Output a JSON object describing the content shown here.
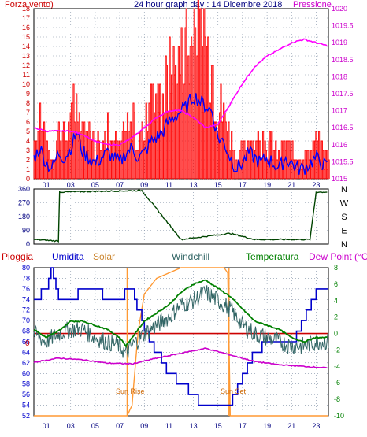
{
  "header": {
    "left_label": "Forza vento)",
    "title": "24 hour graph day : 14 Dicembre 2018",
    "right_label": "Pressione"
  },
  "colors": {
    "wind": "#ff0000",
    "windavg": "#0000ff",
    "pressure": "#ff00ff",
    "direction": "#004400",
    "pioggia": "#cc0000",
    "umidita": "#0000cc",
    "solar": "#ff9933",
    "windchill": "#336666",
    "temperatura": "#008000",
    "dewpoint": "#cc00cc",
    "grid": "#7a8aa0",
    "frame": "#000000"
  },
  "chart_data": [
    {
      "type": "line",
      "y_left_ticks": [
        0,
        1,
        2,
        3,
        4,
        5,
        6,
        7,
        8,
        9,
        10,
        11,
        12,
        13,
        14,
        15,
        16,
        17,
        18
      ],
      "y_right_ticks": [
        "1015",
        "1015.5",
        "1016",
        "1016.5",
        "1017",
        "1017.5",
        "1018",
        "1018.5",
        "1019",
        "1019.5",
        "1020"
      ],
      "x_ticks": [
        "01",
        "03",
        "05",
        "07",
        "09",
        "11",
        "13",
        "15",
        "17",
        "19",
        "21",
        "23"
      ],
      "ylim_left": [
        0,
        18
      ],
      "ylim_right": [
        1015,
        1020
      ],
      "series": [
        {
          "name": "Forza vento)",
          "x": [
            0,
            0.5,
            1,
            1.5,
            2,
            2.5,
            3,
            3.5,
            4,
            4.5,
            5,
            5.5,
            6,
            6.5,
            7,
            7.5,
            8,
            8.5,
            9,
            9.5,
            10,
            10.5,
            11,
            11.5,
            12,
            12.5,
            13,
            13.5,
            14,
            14.5,
            15,
            15.5,
            16,
            16.5,
            17,
            17.5,
            18,
            18.5,
            19,
            19.5,
            20,
            20.5,
            21,
            21.5,
            22,
            22.5,
            23,
            23.5,
            24
          ],
          "values": [
            4,
            6,
            3,
            2,
            5,
            4,
            6,
            9,
            5,
            4,
            3,
            4,
            5,
            4,
            3,
            5,
            6,
            4,
            5,
            7,
            8,
            9,
            11,
            12,
            13,
            14,
            16,
            15,
            14,
            13,
            8,
            7,
            4,
            2,
            3,
            5,
            4,
            3,
            4,
            3,
            2,
            4,
            3,
            2,
            2,
            3,
            4,
            3,
            2
          ]
        },
        {
          "name": "Pressione",
          "x": [
            0,
            1,
            2,
            3,
            4,
            5,
            6,
            7,
            8,
            9,
            10,
            11,
            12,
            13,
            14,
            15,
            16,
            17,
            18,
            19,
            20,
            21,
            22,
            23,
            24
          ],
          "values": [
            1016.5,
            1016.4,
            1016.4,
            1016.4,
            1016.3,
            1016.1,
            1016.0,
            1016.0,
            1016.2,
            1016.5,
            1016.8,
            1017.0,
            1017.0,
            1016.8,
            1016.5,
            1016.6,
            1017.2,
            1017.8,
            1018.3,
            1018.6,
            1018.8,
            1019.0,
            1019.1,
            1019.0,
            1018.9
          ]
        }
      ]
    },
    {
      "type": "line",
      "y_left_ticks": [
        "0",
        "90",
        "180",
        "270",
        "360"
      ],
      "y_right_ticks": [
        "N",
        "W",
        "S",
        "E",
        "N"
      ],
      "ylim": [
        0,
        360
      ],
      "series": [
        {
          "x": [
            0,
            2,
            2.1,
            8.7,
            8.8,
            12,
            15,
            16,
            17,
            18,
            22.5,
            23,
            24
          ],
          "values": [
            30,
            20,
            340,
            350,
            350,
            30,
            60,
            70,
            50,
            30,
            30,
            340,
            340
          ]
        }
      ]
    },
    {
      "type": "line",
      "legend": [
        "Pioggia",
        "Umidita",
        "Solar",
        "Windchill",
        "Temperatura",
        "Dew Point (°C)"
      ],
      "y_left_ticks": [
        52,
        54,
        56,
        58,
        60,
        62,
        64,
        66,
        68,
        70,
        72,
        74,
        76,
        78,
        80
      ],
      "y_right_ticks": [
        -10,
        -8,
        -6,
        -4,
        -2,
        0,
        2,
        4,
        6,
        8
      ],
      "x_ticks": [
        "01",
        "03",
        "05",
        "07",
        "09",
        "11",
        "13",
        "15",
        "17",
        "19",
        "21",
        "23"
      ],
      "annotations": [
        "Sun Rise",
        "Sun Set"
      ],
      "left_marker": "0",
      "ylim_left": [
        52,
        80
      ],
      "ylim_right": [
        -10,
        8
      ],
      "series": [
        {
          "name": "Umidita",
          "x": [
            0,
            1,
            1.5,
            2,
            3,
            4,
            5,
            6,
            7,
            7.5,
            8,
            8.5,
            9,
            10,
            11,
            12,
            13,
            14,
            15,
            16,
            17,
            18,
            19,
            20,
            21,
            22,
            23,
            24
          ],
          "values": [
            74,
            76,
            80,
            74,
            74,
            76,
            76,
            74,
            74,
            76,
            76,
            72,
            68,
            64,
            60,
            58,
            56,
            53,
            53,
            55,
            60,
            64,
            66,
            66,
            66,
            70,
            76,
            75
          ]
        },
        {
          "name": "Temperatura",
          "x": [
            0,
            1,
            2,
            3,
            4,
            5,
            6,
            7,
            7.5,
            8,
            9,
            10,
            11,
            12,
            13,
            14,
            15,
            16,
            17,
            18,
            19,
            20,
            21,
            22,
            23,
            24
          ],
          "values": [
            0.5,
            -0.5,
            0.3,
            1.5,
            1.5,
            1.0,
            0.5,
            -0.5,
            -1.5,
            -0.5,
            1.5,
            2.5,
            3.5,
            5.0,
            6.0,
            6.5,
            5.5,
            4.5,
            3.0,
            1.5,
            1.0,
            0.5,
            -0.5,
            -1.0,
            -0.5,
            -0.5
          ]
        },
        {
          "name": "Windchill",
          "x": [
            0,
            1,
            2,
            3,
            4,
            5,
            6,
            7,
            7.5,
            8,
            9,
            10,
            11,
            12,
            13,
            14,
            15,
            16,
            17,
            18,
            19,
            20,
            21,
            22,
            23,
            24
          ],
          "values": [
            0,
            -1,
            0,
            0.5,
            0.5,
            -0.5,
            -1,
            -1.5,
            -2.5,
            -1.5,
            0,
            1,
            2,
            3.5,
            4,
            5,
            4,
            3,
            1,
            0,
            -0.5,
            -1,
            -1.5,
            -1.5,
            -1,
            -1
          ]
        },
        {
          "name": "Dew Point (°C)",
          "x": [
            0,
            2,
            4,
            6,
            8,
            10,
            12,
            14,
            16,
            18,
            20,
            22,
            24
          ],
          "values": [
            -3.5,
            -3.0,
            -3.2,
            -3.6,
            -3.7,
            -3.0,
            -2.4,
            -1.8,
            -2.6,
            -3.4,
            -3.8,
            -4.0,
            -4.2
          ]
        },
        {
          "name": "Solar",
          "x": [
            0,
            7.6,
            8.0,
            8.5,
            9,
            10,
            11,
            12,
            13,
            14,
            15,
            15.5,
            15.8,
            16,
            24
          ],
          "values": [
            52,
            52,
            54,
            68,
            75,
            78,
            79,
            80,
            80,
            80,
            80,
            80,
            79,
            52,
            52
          ]
        }
      ]
    }
  ]
}
